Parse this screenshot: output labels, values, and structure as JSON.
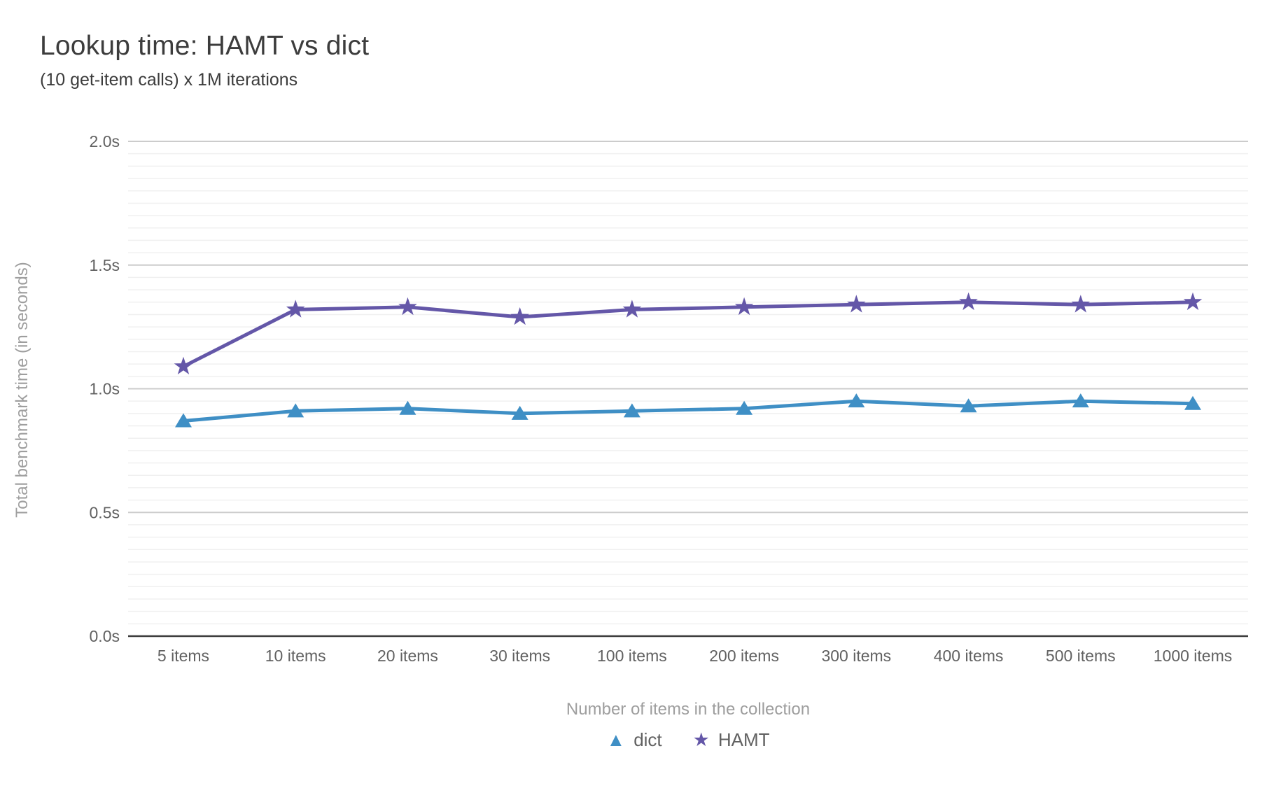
{
  "title": "Lookup time: HAMT vs dict",
  "subtitle": "(10 get-item calls) x 1M iterations",
  "chart_data": {
    "type": "line",
    "title": "Lookup time: HAMT vs dict",
    "subtitle": "(10 get-item calls) x 1M iterations",
    "xlabel": "Number of items in the collection",
    "ylabel": "Total benchmark time (in seconds)",
    "categories": [
      "5 items",
      "10 items",
      "20 items",
      "30 items",
      "100 items",
      "200 items",
      "300 items",
      "400 items",
      "500 items",
      "1000 items"
    ],
    "series": [
      {
        "name": "dict",
        "marker": "triangle",
        "color": "#3f8fc5",
        "values": [
          0.87,
          0.91,
          0.92,
          0.9,
          0.91,
          0.92,
          0.95,
          0.93,
          0.95,
          0.94
        ]
      },
      {
        "name": "HAMT",
        "marker": "star",
        "color": "#6457a8",
        "values": [
          1.09,
          1.32,
          1.33,
          1.29,
          1.32,
          1.33,
          1.34,
          1.35,
          1.34,
          1.35
        ]
      }
    ],
    "ylim": [
      0,
      2.0
    ],
    "y_ticks": [
      {
        "value": 0.0,
        "label": "0.0s"
      },
      {
        "value": 0.5,
        "label": "0.5s"
      },
      {
        "value": 1.0,
        "label": "1.0s"
      },
      {
        "value": 1.5,
        "label": "1.5s"
      },
      {
        "value": 2.0,
        "label": "2.0s"
      }
    ],
    "grid": {
      "major_step": 0.5,
      "minor_step": 0.05,
      "minor_color": "#f0f0f0",
      "major_color": "#cccccc"
    },
    "axis_line_color": "#3c3c3c",
    "legend_position": "bottom",
    "legend_markers": {
      "triangle": "▲",
      "star": "★"
    }
  },
  "text_colors": {
    "title": "#3c3c3c",
    "ticks": "#616161",
    "axis_titles": "#9e9e9e"
  }
}
